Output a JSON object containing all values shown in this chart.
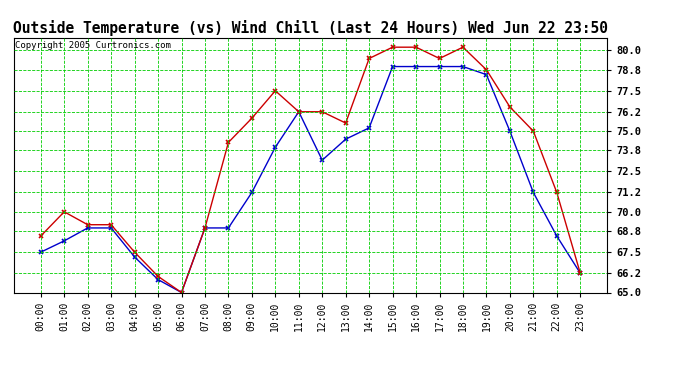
{
  "title": "Outside Temperature (vs) Wind Chill (Last 24 Hours) Wed Jun 22 23:50",
  "copyright": "Copyright 2005 Curtronics.com",
  "x_labels": [
    "00:00",
    "01:00",
    "02:00",
    "03:00",
    "04:00",
    "05:00",
    "06:00",
    "07:00",
    "08:00",
    "09:00",
    "10:00",
    "11:00",
    "12:00",
    "13:00",
    "14:00",
    "15:00",
    "16:00",
    "17:00",
    "18:00",
    "19:00",
    "20:00",
    "21:00",
    "22:00",
    "23:00"
  ],
  "red_data": [
    68.5,
    70.0,
    69.2,
    69.2,
    67.5,
    66.0,
    65.0,
    69.0,
    74.3,
    75.8,
    77.5,
    76.2,
    76.2,
    75.5,
    79.5,
    80.2,
    80.2,
    79.5,
    80.2,
    78.8,
    76.5,
    75.0,
    71.2,
    66.2
  ],
  "blue_data": [
    67.5,
    68.2,
    69.0,
    69.0,
    67.2,
    65.8,
    65.0,
    69.0,
    69.0,
    71.2,
    74.0,
    76.2,
    73.2,
    74.5,
    75.2,
    79.0,
    79.0,
    79.0,
    79.0,
    78.5,
    75.0,
    71.2,
    68.5,
    66.2
  ],
  "red_color": "#cc0000",
  "blue_color": "#0000cc",
  "bg_color": "#ffffff",
  "grid_color": "#00cc00",
  "title_fontsize": 10.5,
  "ylim": [
    65.0,
    80.8
  ],
  "yticks": [
    65.0,
    66.2,
    67.5,
    68.8,
    70.0,
    71.2,
    72.5,
    73.8,
    75.0,
    76.2,
    77.5,
    78.8,
    80.0
  ]
}
